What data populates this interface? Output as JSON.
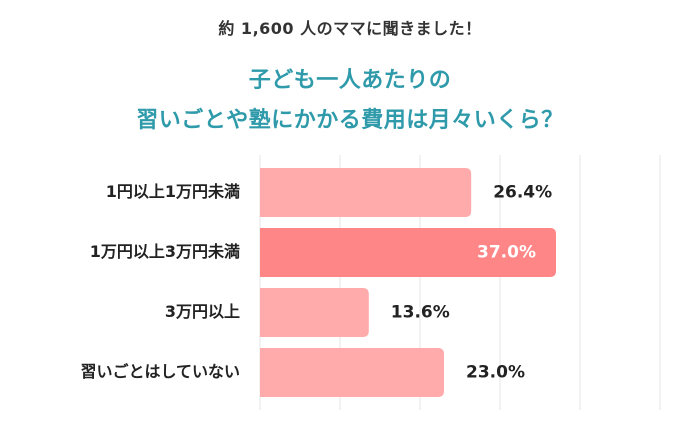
{
  "header": {
    "survey_line": "約 1,600 人のママに聞きました！",
    "title_line1": "子ども一人あたりの",
    "title_line2": "習いごとや塾にかかる費用は月々いくら？"
  },
  "colors": {
    "title": "#2e9aaa",
    "bar": "#ffabab",
    "bar_highlight": "#ff8686",
    "gridline": "#e6e6e6"
  },
  "chart_data": {
    "type": "bar",
    "orientation": "horizontal",
    "title": "子ども一人あたりの習いごとや塾にかかる費用は月々いくら？",
    "categories": [
      "1円以上1万円未満",
      "1万円以上3万円未満",
      "3万円以上",
      "習いごとはしていない"
    ],
    "values": [
      26.4,
      37.0,
      13.6,
      23.0
    ],
    "value_labels": [
      "26.4%",
      "37.0%",
      "13.6%",
      "23.0%"
    ],
    "highlight_index": 1,
    "xlim": [
      0,
      50
    ],
    "grid": true,
    "legend": "none"
  }
}
